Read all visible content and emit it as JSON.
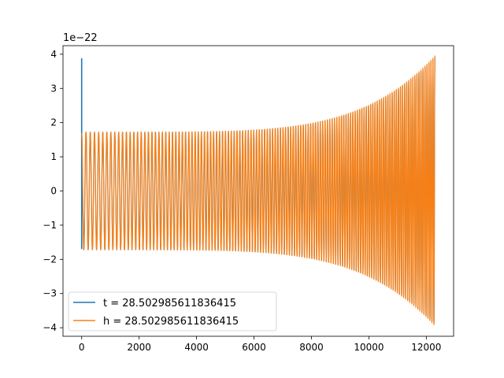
{
  "chart_data": {
    "type": "line",
    "title": "",
    "xlabel": "",
    "ylabel": "",
    "y_scale_label": "1e−22",
    "xlim": [
      -650,
      12950
    ],
    "ylim": [
      -4.25,
      4.25
    ],
    "x_ticks": [
      0,
      2000,
      4000,
      6000,
      8000,
      10000,
      12000
    ],
    "x_tick_labels": [
      "0",
      "2000",
      "4000",
      "6000",
      "8000",
      "10000",
      "12000"
    ],
    "y_ticks": [
      4,
      3,
      2,
      1,
      0,
      -1,
      -2,
      -3,
      -4
    ],
    "y_tick_labels": [
      "4",
      "3",
      "2",
      "1",
      "0",
      "−1",
      "−2",
      "−3",
      "−4"
    ],
    "grid": false,
    "legend_position": "lower-left",
    "series": [
      {
        "name": "t = 28.502985611836415",
        "color": "#1f77b4",
        "description": "chirp waveform starting with a spike near x=0",
        "spike": {
          "x": 0,
          "y_max": 3.88,
          "y_min": -1.7
        },
        "x_start": 0,
        "x_end": 12300,
        "amplitude_start": 1.72,
        "amplitude_end": 3.9,
        "cycles": 130
      },
      {
        "name": "h = 28.502985611836415",
        "color": "#ff7f0e",
        "description": "chirp waveform, amplitude growing toward merger",
        "x_start": 0,
        "x_end": 12300,
        "amplitude_start": 1.72,
        "amplitude_end": 3.95,
        "cycles": 130
      }
    ]
  }
}
